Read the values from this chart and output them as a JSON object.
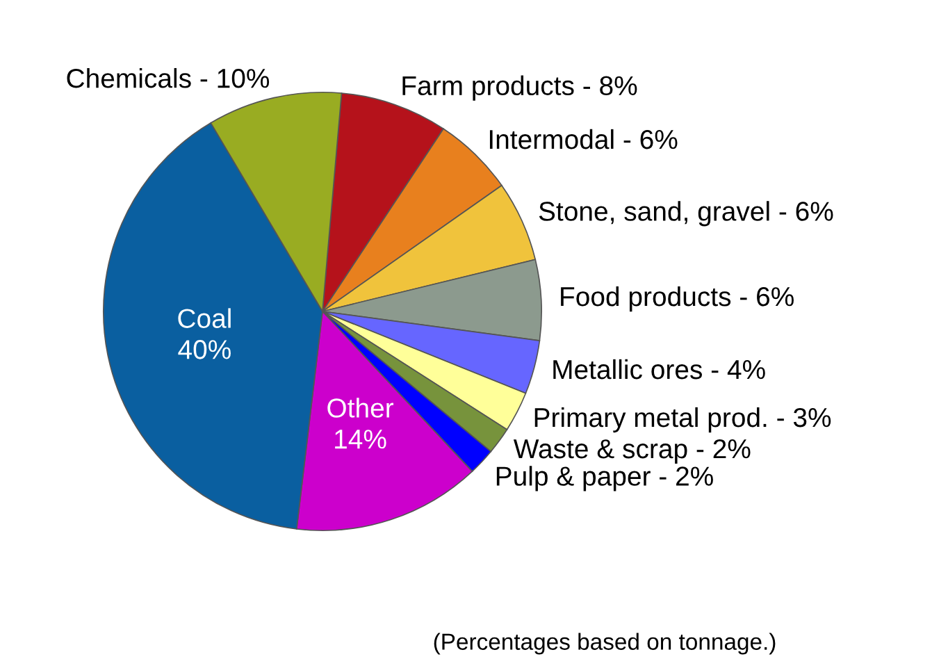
{
  "chart_data": {
    "type": "pie",
    "categories": [
      "Farm products",
      "Intermodal",
      "Stone, sand, gravel",
      "Food products",
      "Metallic ores",
      "Primary metal prod.",
      "Waste & scrap",
      "Pulp & paper",
      "Other",
      "Coal",
      "Chemicals"
    ],
    "values": [
      8,
      6,
      6,
      6,
      4,
      3,
      2,
      2,
      14,
      40,
      10
    ],
    "value_labels": [
      "8%",
      "6%",
      "6%",
      "6%",
      "4%",
      "3%",
      "2%",
      "2%",
      "14%",
      "40%",
      "10%"
    ],
    "colors": [
      "#b5121b",
      "#e8801e",
      "#f0c33c",
      "#8c9a8e",
      "#6666ff",
      "#ffff99",
      "#77933c",
      "#0000ff",
      "#cc00cc",
      "#0a5fa0",
      "#99ac22"
    ],
    "annotations": [
      "(Percentages based on tonnage.)"
    ],
    "legend": false
  }
}
